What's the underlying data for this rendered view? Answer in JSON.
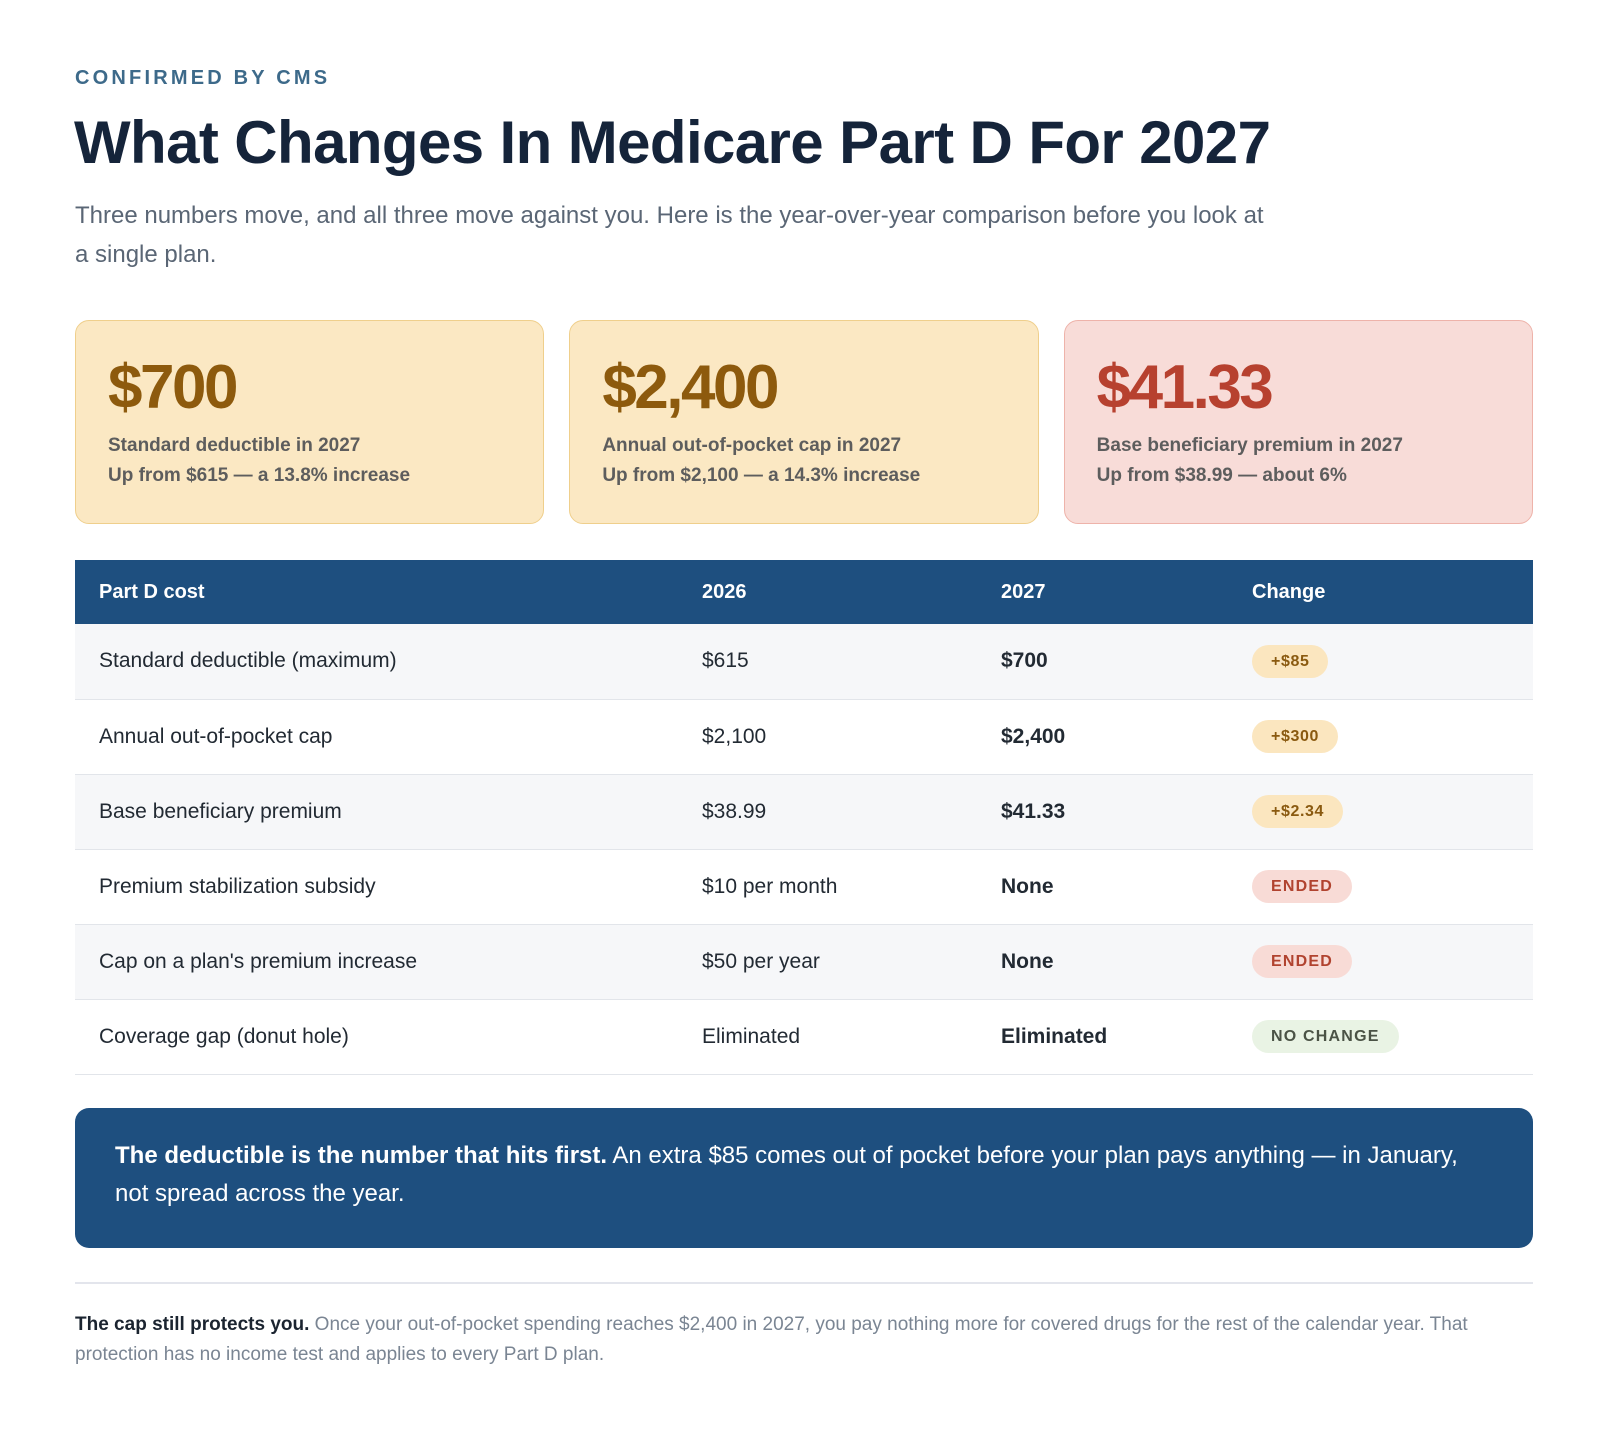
{
  "header": {
    "eyebrow": "CONFIRMED BY CMS",
    "title": "What Changes In Medicare Part D For 2027",
    "subtitle": "Three numbers move, and all three move against you. Here is the year-over-year comparison before you look at a single plan."
  },
  "cards": [
    {
      "value": "$700",
      "label": "Standard deductible in 2027",
      "detail": "Up from $615 — a 13.8% increase",
      "tone": "amber"
    },
    {
      "value": "$2,400",
      "label": "Annual out-of-pocket cap in 2027",
      "detail": "Up from $2,100 — a 14.3% increase",
      "tone": "amber"
    },
    {
      "value": "$41.33",
      "label": "Base beneficiary premium in 2027",
      "detail": "Up from $38.99 — about 6%",
      "tone": "red"
    }
  ],
  "table": {
    "headers": [
      "Part D cost",
      "2026",
      "2027",
      "Change"
    ],
    "rows": [
      {
        "item": "Standard deductible (maximum)",
        "y2026": "$615",
        "y2027": "$700",
        "change": "+$85",
        "kind": "up"
      },
      {
        "item": "Annual out-of-pocket cap",
        "y2026": "$2,100",
        "y2027": "$2,400",
        "change": "+$300",
        "kind": "up"
      },
      {
        "item": "Base beneficiary premium",
        "y2026": "$38.99",
        "y2027": "$41.33",
        "change": "+$2.34",
        "kind": "up"
      },
      {
        "item": "Premium stabilization subsidy",
        "y2026": "$10 per month",
        "y2027": "None",
        "change": "ENDED",
        "kind": "ended"
      },
      {
        "item": "Cap on a plan's premium increase",
        "y2026": "$50 per year",
        "y2027": "None",
        "change": "ENDED",
        "kind": "ended"
      },
      {
        "item": "Coverage gap (donut hole)",
        "y2026": "Eliminated",
        "y2027": "Eliminated",
        "change": "NO CHANGE",
        "kind": "same"
      }
    ]
  },
  "callout": {
    "lead": "The deductible is the number that hits first.",
    "body": " An extra $85 comes out of pocket before your plan pays anything — in January, not spread across the year."
  },
  "footnote": {
    "lead": "The cap still protects you.",
    "body": " Once your out-of-pocket spending reaches $2,400 in 2027, you pay nothing more for covered drugs for the rest of the calendar year. That protection has no income test and applies to every Part D plan."
  }
}
